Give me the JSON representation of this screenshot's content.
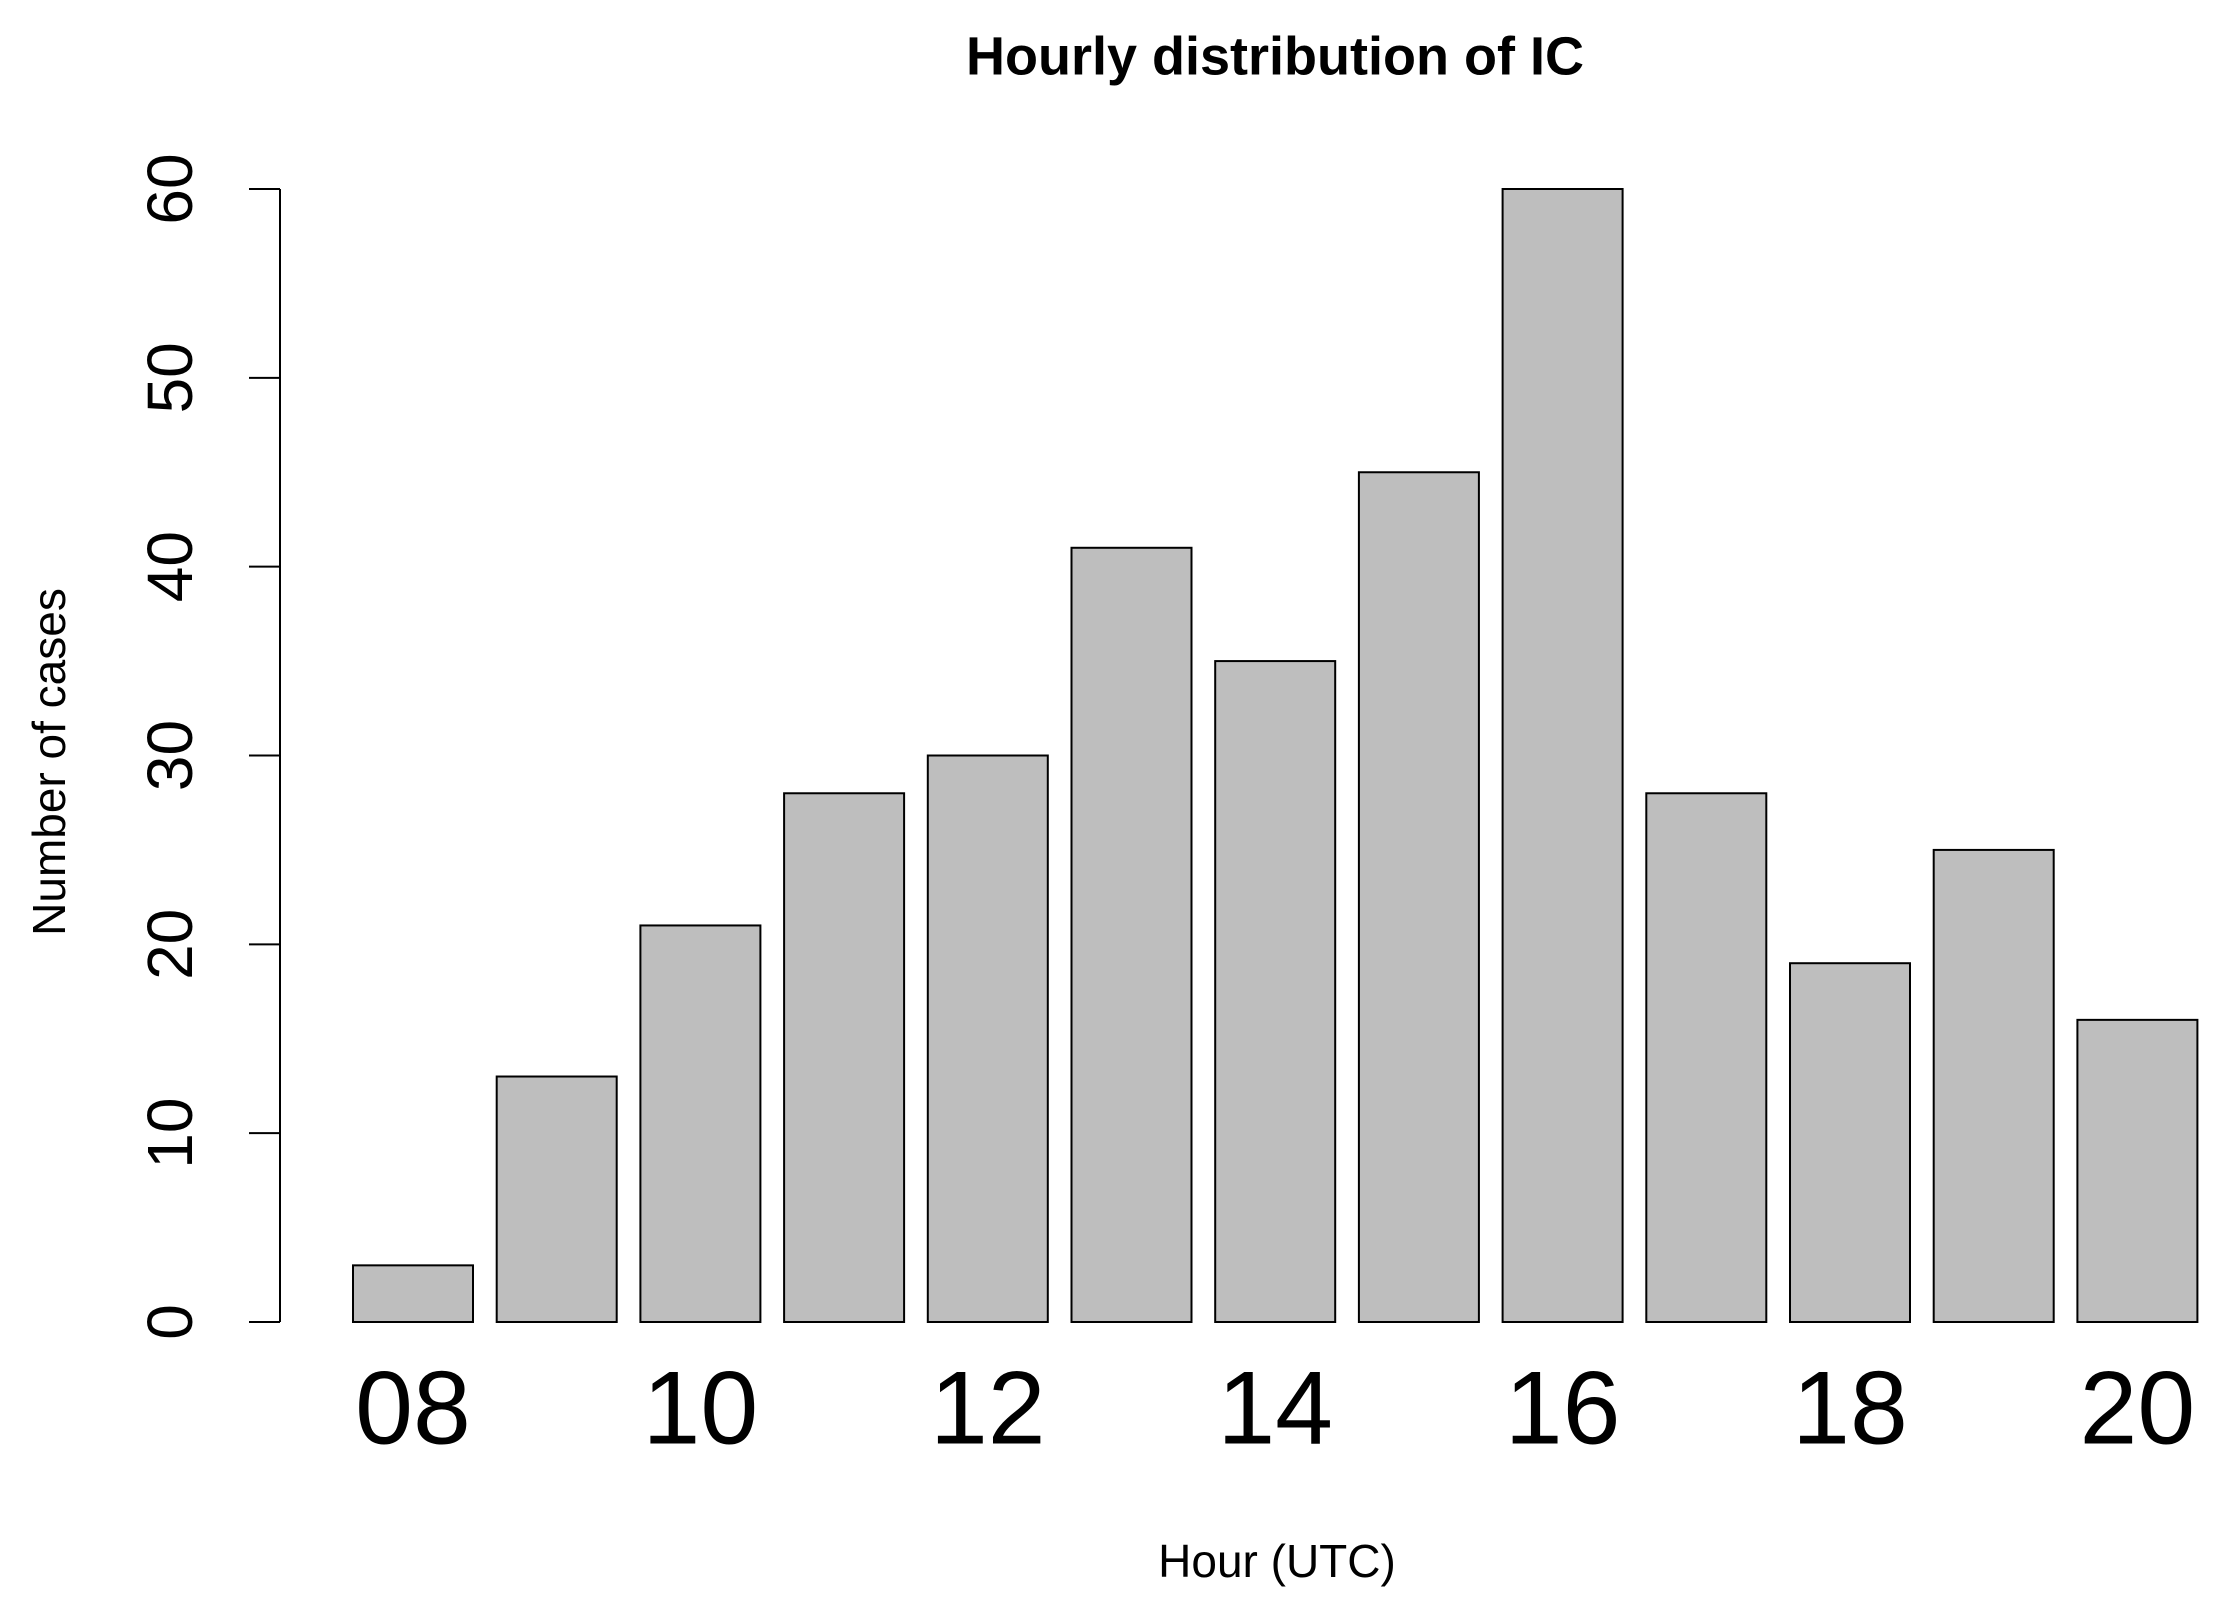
{
  "chart_data": {
    "type": "bar",
    "title": "Hourly distribution of IC",
    "x_label": "Hour (UTC)",
    "y_label": "Number of cases",
    "categories": [
      "08",
      null,
      "10",
      null,
      "12",
      null,
      "14",
      null,
      "16",
      null,
      "18",
      null,
      "20"
    ],
    "values": [
      3,
      13,
      21,
      28,
      30,
      41,
      35,
      45,
      60,
      28,
      19,
      25,
      16
    ],
    "color": "#bebebe",
    "ylim": [
      0,
      60
    ],
    "yticks": [
      0,
      10,
      20,
      30,
      40,
      50,
      60
    ],
    "grid": false
  }
}
